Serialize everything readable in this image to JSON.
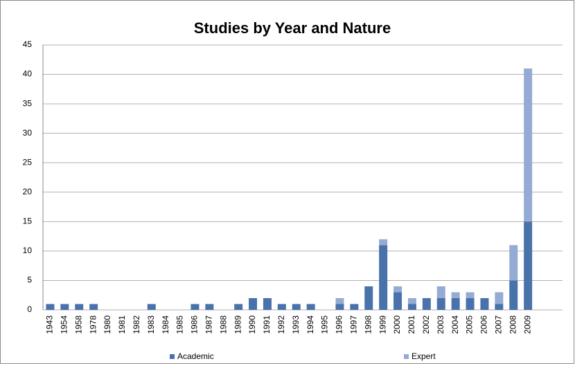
{
  "chart_data": {
    "type": "stacked_bar",
    "title": "Studies by Year and Nature",
    "categories": [
      "1943",
      "1954",
      "1958",
      "1978",
      "1980",
      "1981",
      "1982",
      "1983",
      "1984",
      "1985",
      "1986",
      "1987",
      "1988",
      "1989",
      "1990",
      "1991",
      "1992",
      "1993",
      "1994",
      "1995",
      "1996",
      "1997",
      "1998",
      "1999",
      "2000",
      "2001",
      "2002",
      "2003",
      "2004",
      "2005",
      "2006",
      "2007",
      "2008",
      "2009"
    ],
    "series": [
      {
        "name": "Academic",
        "color": "#4a72aa",
        "values": [
          1,
          1,
          1,
          1,
          0,
          0,
          0,
          1,
          0,
          0,
          1,
          1,
          0,
          1,
          2,
          2,
          1,
          1,
          1,
          0,
          1,
          1,
          4,
          11,
          3,
          1,
          2,
          2,
          2,
          2,
          2,
          1,
          5,
          15
        ]
      },
      {
        "name": "Expert",
        "color": "#95abd4",
        "values": [
          0,
          0,
          0,
          0,
          0,
          0,
          0,
          0,
          0,
          0,
          0,
          0,
          0,
          0,
          0,
          0,
          0,
          0,
          0,
          0,
          1,
          0,
          0,
          1,
          1,
          1,
          0,
          2,
          1,
          1,
          0,
          2,
          6,
          26
        ]
      }
    ],
    "ylim": [
      0,
      45
    ],
    "yticks": [
      0,
      5,
      10,
      15,
      20,
      25,
      30,
      35,
      40,
      45
    ],
    "grid": true,
    "legend": "bottom"
  }
}
